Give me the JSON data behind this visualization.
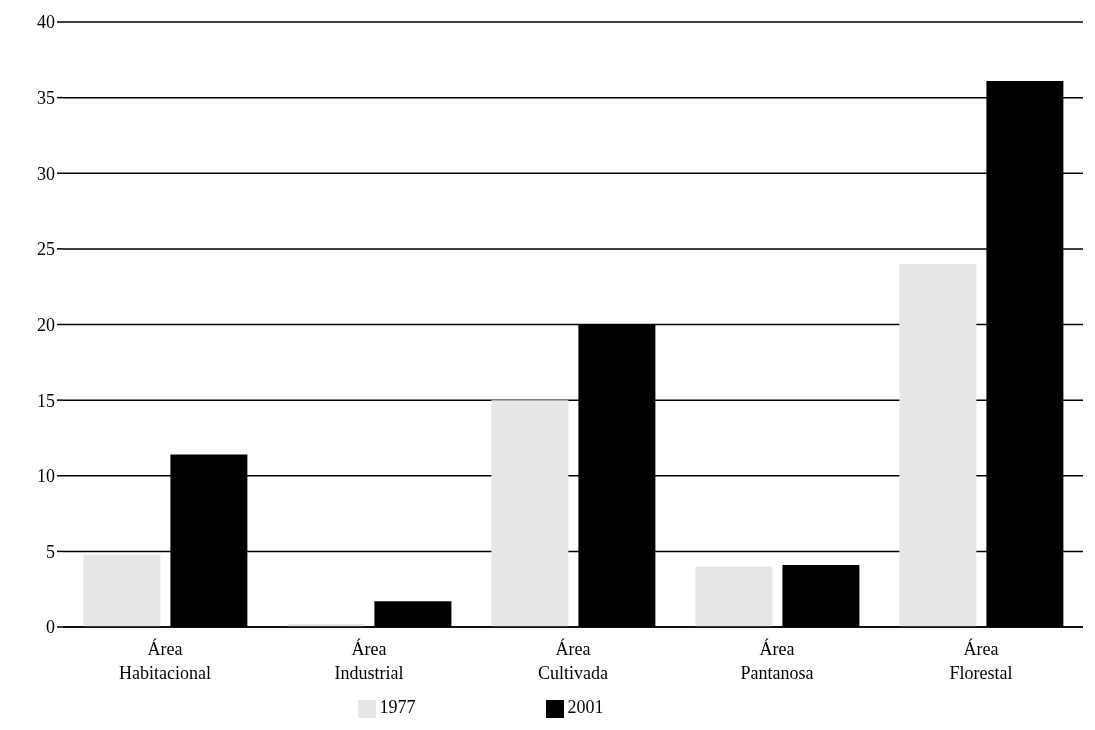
{
  "chart_data": {
    "type": "bar",
    "categories": [
      "Área Habitacional",
      "Área Industrial",
      "Área Cultivada",
      "Área Pantanosa",
      "Área Florestal"
    ],
    "series": [
      {
        "name": "1977",
        "color": "#e6e6e6",
        "values": [
          4.8,
          0.2,
          15,
          4,
          24
        ]
      },
      {
        "name": "2001",
        "color": "#000000",
        "values": [
          11.4,
          1.7,
          20,
          4.1,
          36.1
        ]
      }
    ],
    "ylim": [
      0,
      40
    ],
    "yticks": [
      0,
      5,
      10,
      15,
      20,
      25,
      30,
      35,
      40
    ],
    "grid": "y",
    "legend": "bottom"
  }
}
